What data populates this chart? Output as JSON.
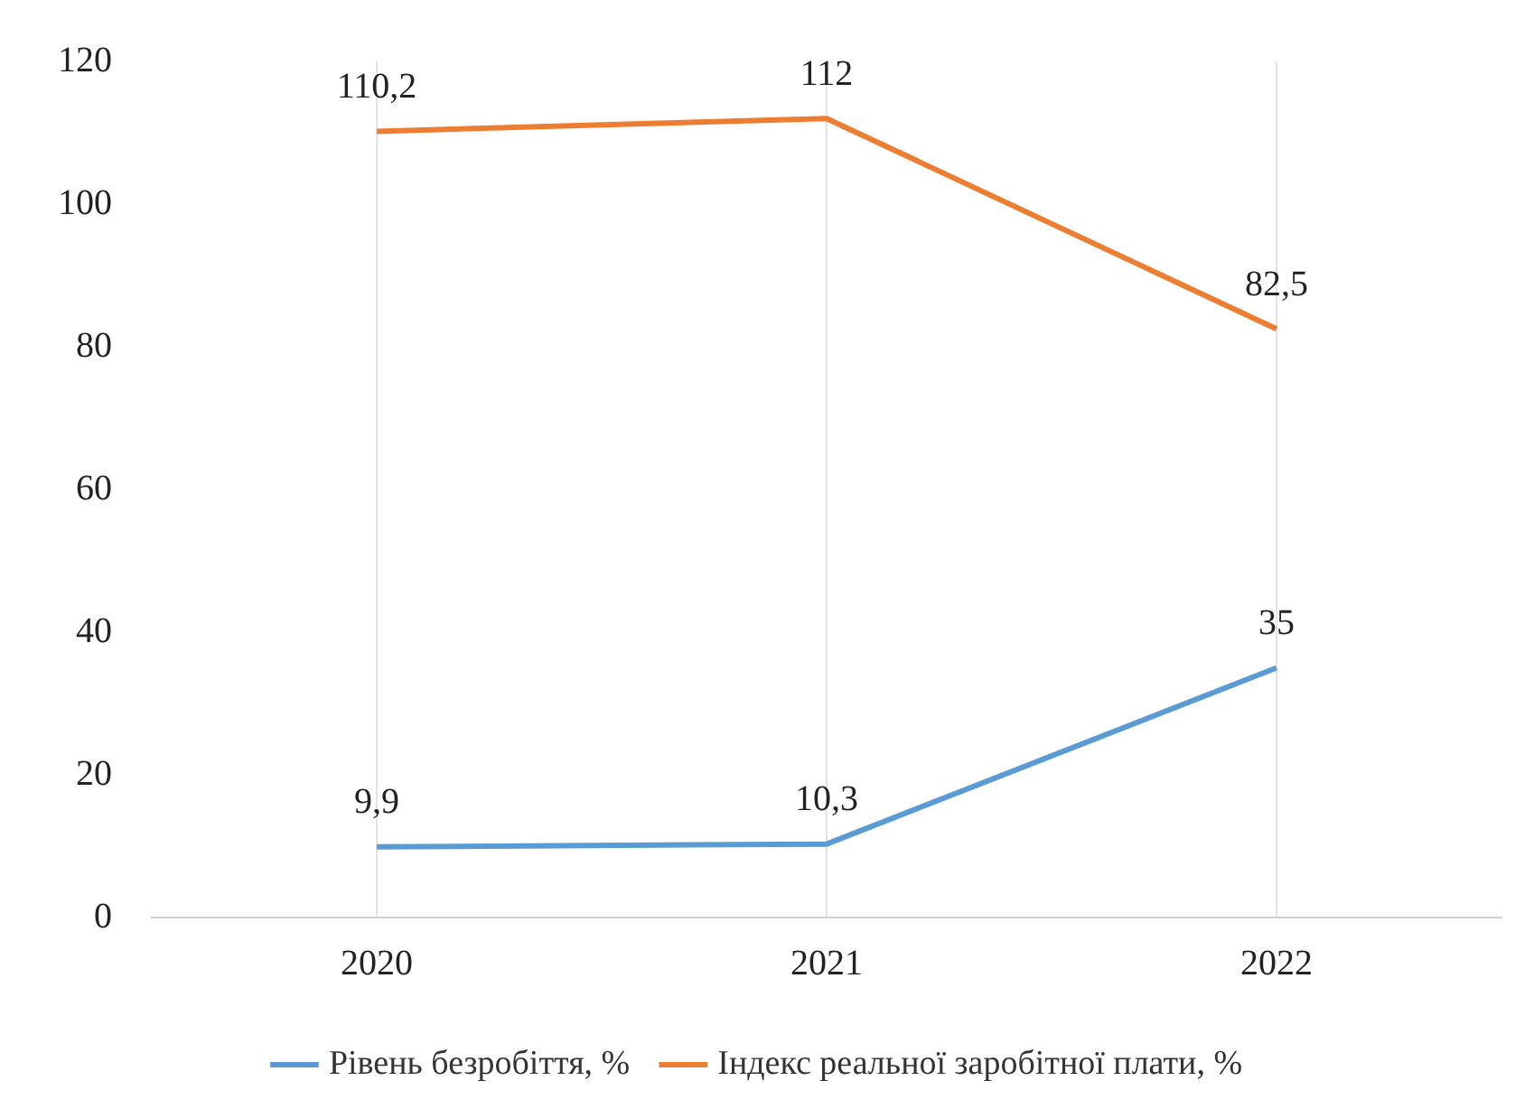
{
  "chart_data": {
    "type": "line",
    "categories": [
      "2020",
      "2021",
      "2022"
    ],
    "series": [
      {
        "name": "Рівень безробіття, %",
        "color": "#5b9bd5",
        "values": [
          9.9,
          10.3,
          35
        ],
        "value_labels": [
          "9,9",
          "10,3",
          "35"
        ]
      },
      {
        "name": "Індекс реальної заробітної плати, %",
        "color": "#ed7d31",
        "values": [
          110.2,
          112,
          82.5
        ],
        "value_labels": [
          "110,2",
          "112",
          "82,5"
        ]
      }
    ],
    "ylim": [
      0,
      120
    ],
    "yticks": [
      0,
      20,
      40,
      60,
      80,
      100,
      120
    ],
    "grid": "x",
    "legend": "bottom",
    "marker": "none",
    "line_style": "solid"
  }
}
